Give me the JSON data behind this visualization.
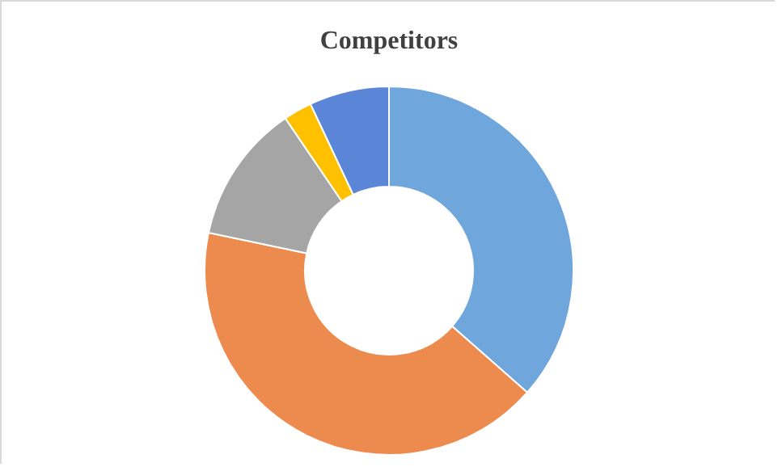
{
  "chart_data": {
    "type": "donut",
    "title": "Competitors",
    "categories": [
      null,
      null,
      null,
      null,
      null
    ],
    "values": [
      36.5,
      41.8,
      12.2,
      2.5,
      7.0
    ],
    "colors": [
      "#6fa6db",
      "#ed8b4e",
      "#a5a5a5",
      "#ffc000",
      "#5b85d6"
    ],
    "legend": false
  }
}
